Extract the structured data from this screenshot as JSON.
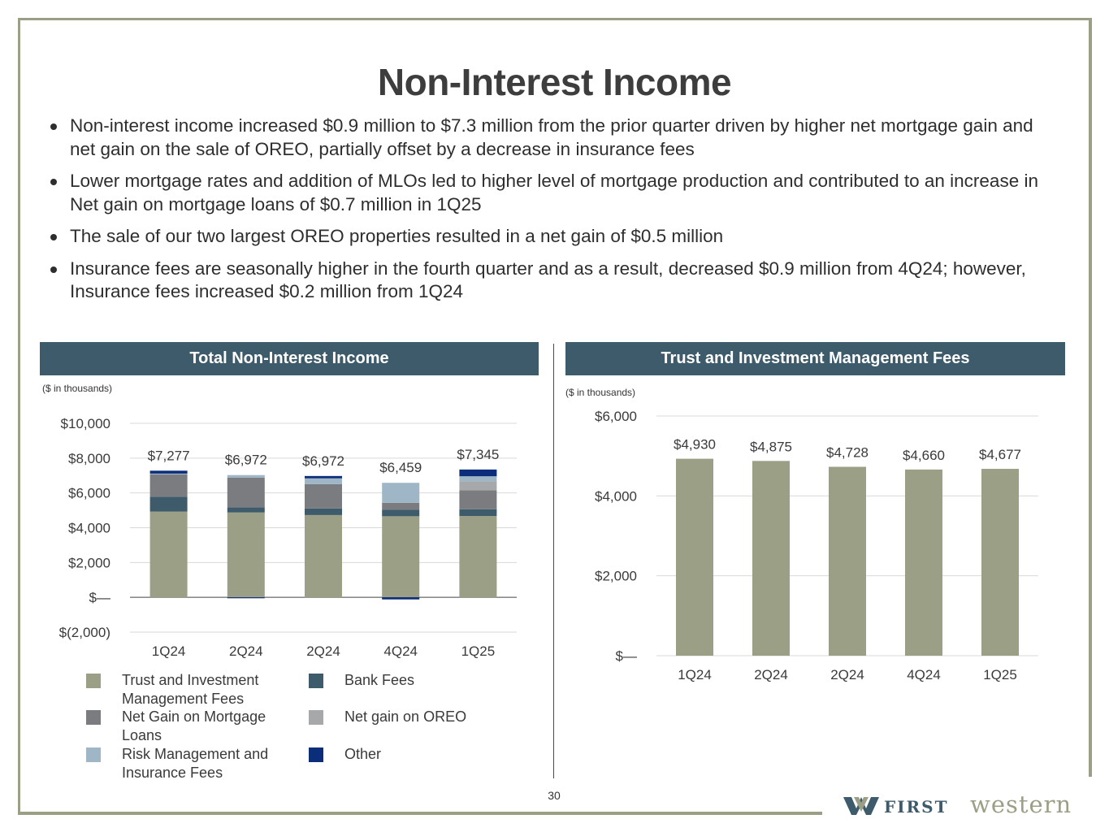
{
  "page_title": "Non-Interest Income",
  "bullets": [
    "Non-interest income increased $0.9 million to $7.3 million from the prior quarter driven by higher net mortgage gain and net gain on the sale of OREO, partially offset by a decrease in insurance fees",
    "Lower mortgage rates and addition of MLOs led to higher level of mortgage production and contributed to an increase in Net gain on mortgage loans of $0.7 million in 1Q25",
    "The sale of our two largest OREO properties resulted in a net gain of $0.5 million",
    "Insurance fees are seasonally higher in the fourth quarter and as a result, decreased $0.9 million from 4Q24; however, Insurance fees increased $0.2 million from 1Q24"
  ],
  "left_panel": {
    "header": "Total Non-Interest Income",
    "unit_note": "($ in thousands)"
  },
  "right_panel": {
    "header": "Trust and Investment Management Fees",
    "unit_note": "($ in thousands)"
  },
  "page_number": "30",
  "logo": {
    "first": "FIRST",
    "western": "western"
  },
  "colors": {
    "trust": "#9b9f85",
    "bank": "#3e5b6b",
    "mortgage": "#7a7c80",
    "oreo": "#a6a8aa",
    "insurance": "#9fb6c6",
    "other": "#0b2d7a",
    "header_bg": "#3e5b6b",
    "frame": "#9b9f85"
  },
  "chart_data": [
    {
      "type": "bar",
      "stacked": true,
      "title": "Total Non-Interest Income",
      "categories": [
        "1Q24",
        "2Q24",
        "2Q24",
        "4Q24",
        "1Q25"
      ],
      "ylim": [
        -2000,
        10000
      ],
      "ytick_values": [
        -2000,
        0,
        2000,
        4000,
        6000,
        8000,
        10000
      ],
      "ytick_labels": [
        "$(2,000)",
        "$—",
        "$2,000",
        "$4,000",
        "$6,000",
        "$8,000",
        "$10,000"
      ],
      "grid": true,
      "legend_position": "bottom",
      "total_labels": [
        "$7,277",
        "$6,972",
        "$6,972",
        "$6,459",
        "$7,345"
      ],
      "series": [
        {
          "name": "Trust and Investment Management Fees",
          "color_key": "trust",
          "values": [
            4930,
            4875,
            4728,
            4660,
            4677
          ]
        },
        {
          "name": "Bank Fees",
          "color_key": "bank",
          "values": [
            850,
            300,
            380,
            370,
            380
          ]
        },
        {
          "name": "Net Gain on Mortgage Loans",
          "color_key": "mortgage",
          "values": [
            1280,
            1700,
            1400,
            400,
            1100
          ]
        },
        {
          "name": "Net gain on OREO",
          "color_key": "oreo",
          "values": [
            0,
            0,
            0,
            0,
            500
          ]
        },
        {
          "name": "Risk Management and Insurance Fees",
          "color_key": "insurance",
          "values": [
            50,
            150,
            330,
            1150,
            300
          ]
        },
        {
          "name": "Other",
          "color_key": "other",
          "values": [
            167,
            -53,
            134,
            -121,
            388
          ]
        }
      ]
    },
    {
      "type": "bar",
      "title": "Trust and Investment Management Fees",
      "categories": [
        "1Q24",
        "2Q24",
        "2Q24",
        "4Q24",
        "1Q25"
      ],
      "values": [
        4930,
        4875,
        4728,
        4660,
        4677
      ],
      "value_labels": [
        "$4,930",
        "$4,875",
        "$4,728",
        "$4,660",
        "$4,677"
      ],
      "ylim": [
        0,
        6000
      ],
      "ytick_values": [
        0,
        2000,
        4000,
        6000
      ],
      "ytick_labels": [
        "$—",
        "$2,000",
        "$4,000",
        "$6,000"
      ],
      "grid": true,
      "color_key": "trust"
    }
  ]
}
